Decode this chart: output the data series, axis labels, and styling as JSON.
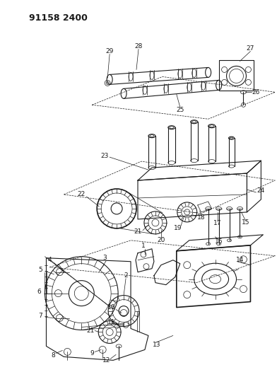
{
  "title": "91158 2400",
  "bg_color": "#ffffff",
  "line_color": "#1a1a1a",
  "gray_color": "#888888",
  "light_gray": "#cccccc",
  "title_fontsize": 9,
  "label_fontsize": 6.5,
  "figsize": [
    3.92,
    5.33
  ],
  "dpi": 100
}
